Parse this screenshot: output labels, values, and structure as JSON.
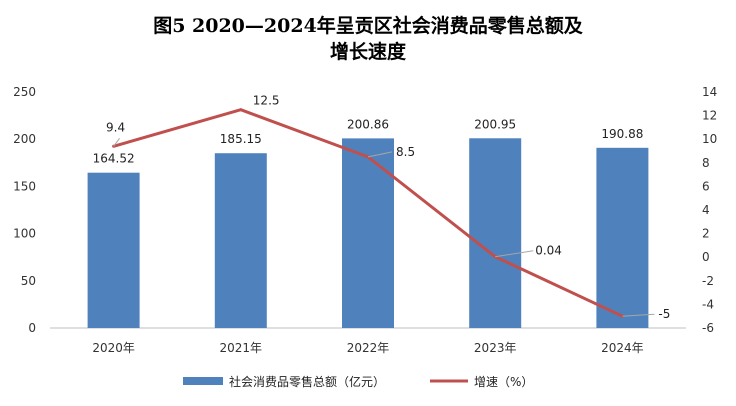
{
  "chart_data": {
    "type": "bar",
    "title_lines": [
      "图5  2020—2024年呈贡区社会消费品零售总额及",
      "增长速度"
    ],
    "categories": [
      "2020年",
      "2021年",
      "2022年",
      "2023年",
      "2024年"
    ],
    "series": [
      {
        "name": "社会消费品零售总额（亿元）",
        "type": "bar",
        "axis": "left",
        "color": "#4F81BD",
        "values": [
          164.52,
          185.15,
          200.86,
          200.95,
          190.88
        ]
      },
      {
        "name": "增速（%）",
        "type": "line",
        "axis": "right",
        "color": "#C0504D",
        "values": [
          9.4,
          12.5,
          8.5,
          0.04,
          -5
        ]
      }
    ],
    "y_left": {
      "min": 0,
      "max": 250,
      "step": 50,
      "ticks": [
        "0",
        "50",
        "100",
        "150",
        "200",
        "250"
      ]
    },
    "y_right": {
      "min": -6,
      "max": 14,
      "step": 2,
      "ticks": [
        "-6",
        "-4",
        "-2",
        "0",
        "2",
        "4",
        "6",
        "8",
        "10",
        "12",
        "14"
      ]
    },
    "bar_labels": [
      "164.52",
      "185.15",
      "200.86",
      "200.95",
      "190.88"
    ],
    "line_labels": [
      "9.4",
      "12.5",
      "8.5",
      "0.04",
      "-5"
    ],
    "legend_position": "bottom",
    "grid": false
  }
}
